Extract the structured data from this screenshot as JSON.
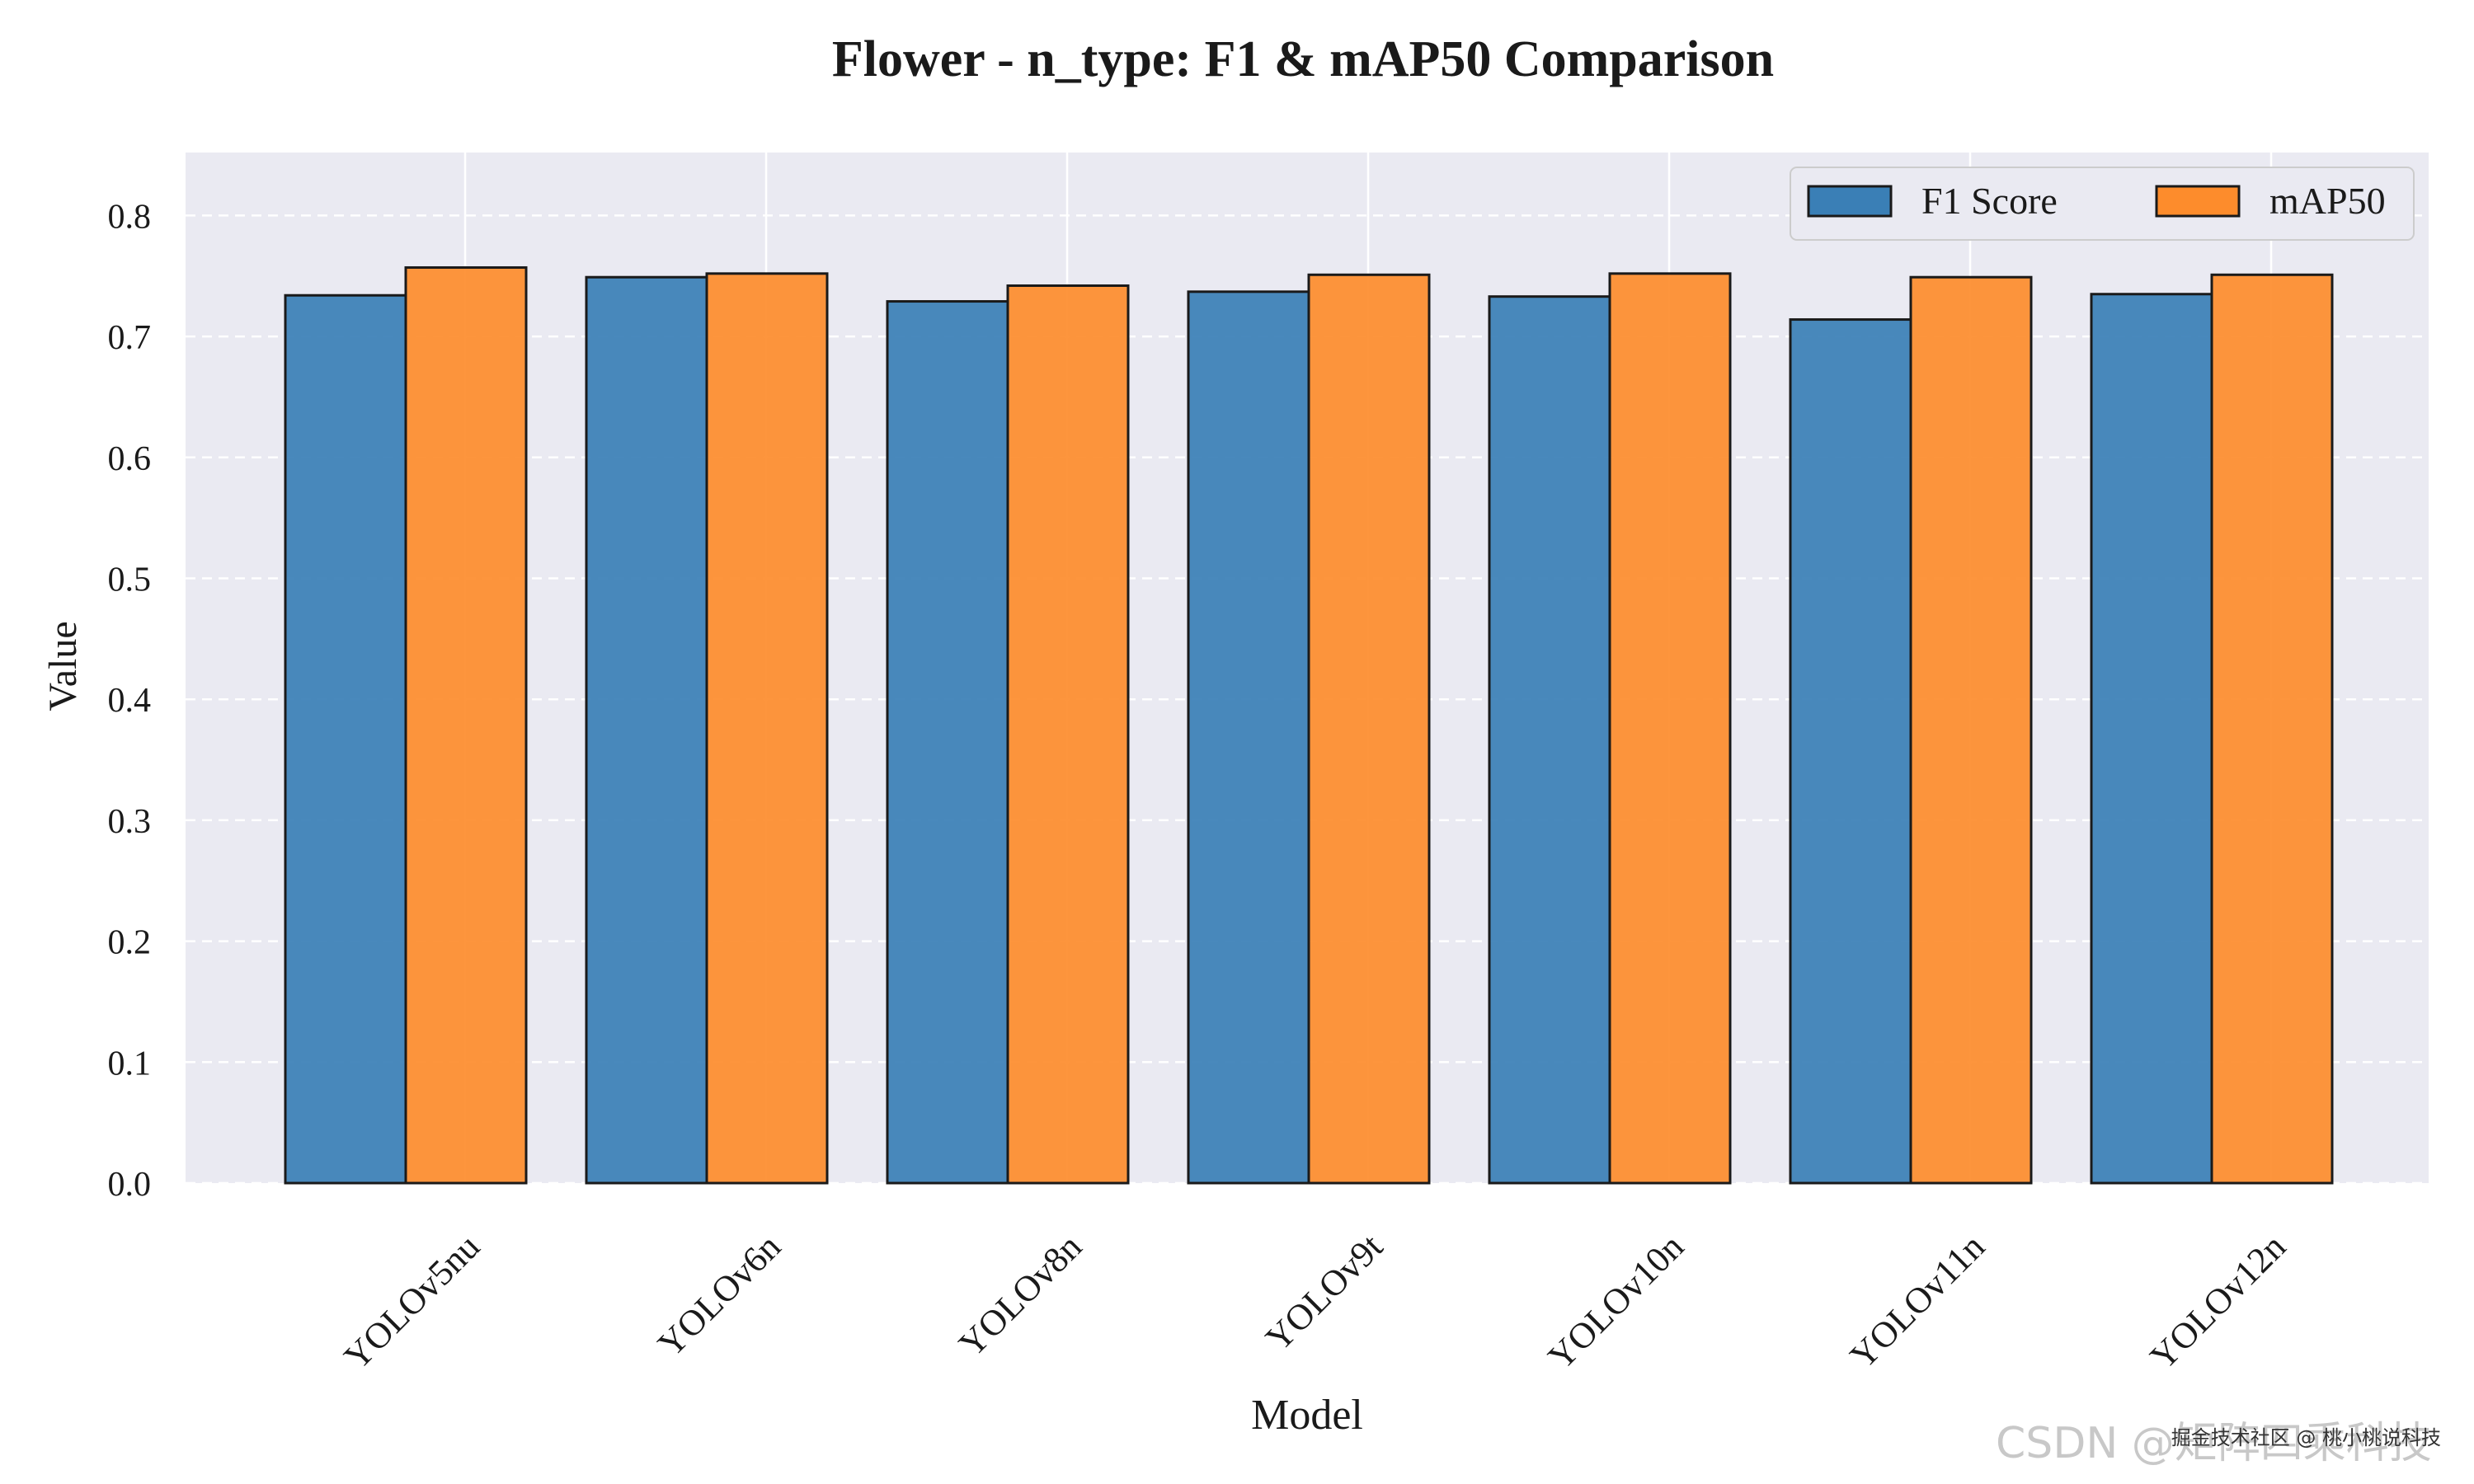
{
  "chart_data": {
    "type": "bar",
    "title": "Flower - n_type: F1 & mAP50 Comparison",
    "xlabel": "Model",
    "ylabel": "Value",
    "categories": [
      "YOLOv5nu",
      "YOLOv6n",
      "YOLOv8n",
      "YOLOv9t",
      "YOLOv10n",
      "YOLOv11n",
      "YOLOv12n"
    ],
    "series": [
      {
        "name": "F1 Score",
        "color": "#3a7fb6",
        "values": [
          0.734,
          0.749,
          0.729,
          0.737,
          0.733,
          0.714,
          0.735
        ]
      },
      {
        "name": "mAP50",
        "color": "#fd8c2c",
        "values": [
          0.757,
          0.752,
          0.742,
          0.751,
          0.752,
          0.749,
          0.751
        ]
      }
    ],
    "ylim": [
      0.0,
      0.855
    ],
    "yticks": [
      "0.0",
      "0.1",
      "0.2",
      "0.3",
      "0.4",
      "0.5",
      "0.6",
      "0.7",
      "0.8"
    ],
    "grid": true,
    "legend_position": "top-right",
    "plot_background": "#eaeaf2",
    "bar_edge_color": "#1a1a1a"
  },
  "watermark": {
    "text": "CSDN @矩阵四乘科技",
    "stamp": "掘金技术社区 @ 桃小桃说科技"
  }
}
